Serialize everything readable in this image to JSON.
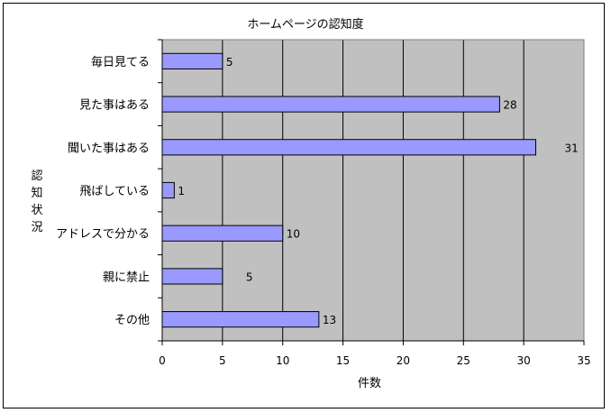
{
  "chart_data": {
    "type": "bar",
    "orientation": "horizontal",
    "title": "ホームページの認知度",
    "xlabel": "件数",
    "ylabel": "認知状況",
    "categories": [
      "毎日見てる",
      "見た事はある",
      "聞いた事はある",
      "飛ばしている",
      "アドレスで分かる",
      "親に禁止",
      "その他"
    ],
    "values": [
      5,
      28,
      31,
      1,
      10,
      5,
      13
    ],
    "data_labels": [
      "5",
      "28",
      "31",
      "1",
      "10",
      "5",
      "13"
    ],
    "xlim": [
      0,
      35
    ],
    "xticks": [
      "0",
      "5",
      "10",
      "15",
      "20",
      "25",
      "30",
      "35"
    ],
    "grid": "vertical",
    "legend": "none",
    "colors": {
      "plot_background": "#c0c0c0",
      "bar_fill": "#9999ff",
      "bar_stroke": "#000000",
      "gridline": "#000000"
    }
  }
}
